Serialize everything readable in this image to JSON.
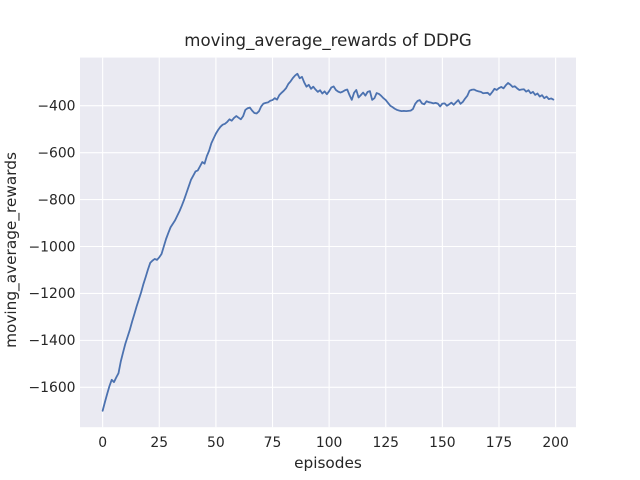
{
  "chart_data": {
    "type": "line",
    "title": "moving_average_rewards of DDPG",
    "xlabel": "episodes",
    "ylabel": "moving_average_rewards",
    "x_ticks": [
      0,
      25,
      50,
      75,
      100,
      125,
      150,
      175,
      200
    ],
    "y_ticks": [
      -400,
      -600,
      -800,
      -1000,
      -1200,
      -1400,
      -1600
    ],
    "xlim": [
      -10,
      209
    ],
    "ylim": [
      -1770,
      -195
    ],
    "grid": true,
    "legend_position": "none",
    "style": {
      "line_color": "#4c72b0",
      "axes_background": "#eaeaf2",
      "grid_color": "#ffffff",
      "text_color": "#262626",
      "figure_background": "#ffffff"
    },
    "series": [
      {
        "name": "moving_average_rewards",
        "x": [
          0,
          1,
          2,
          3,
          4,
          5,
          6,
          7,
          8,
          9,
          10,
          11,
          12,
          13,
          14,
          15,
          16,
          17,
          18,
          19,
          20,
          21,
          22,
          23,
          24,
          25,
          26,
          27,
          28,
          29,
          30,
          31,
          32,
          33,
          34,
          35,
          36,
          37,
          38,
          39,
          40,
          41,
          42,
          43,
          44,
          45,
          46,
          47,
          48,
          49,
          50,
          51,
          52,
          53,
          54,
          55,
          56,
          57,
          58,
          59,
          60,
          61,
          62,
          63,
          64,
          65,
          66,
          67,
          68,
          69,
          70,
          71,
          72,
          73,
          74,
          75,
          76,
          77,
          78,
          79,
          80,
          81,
          82,
          83,
          84,
          85,
          86,
          87,
          88,
          89,
          90,
          91,
          92,
          93,
          94,
          95,
          96,
          97,
          98,
          99,
          100,
          101,
          102,
          103,
          104,
          105,
          106,
          107,
          108,
          109,
          110,
          111,
          112,
          113,
          114,
          115,
          116,
          117,
          118,
          119,
          120,
          121,
          122,
          123,
          124,
          125,
          126,
          127,
          128,
          129,
          130,
          131,
          132,
          133,
          134,
          135,
          136,
          137,
          138,
          139,
          140,
          141,
          142,
          143,
          144,
          145,
          146,
          147,
          148,
          149,
          150,
          151,
          152,
          153,
          154,
          155,
          156,
          157,
          158,
          159,
          160,
          161,
          162,
          163,
          164,
          165,
          166,
          167,
          168,
          169,
          170,
          171,
          172,
          173,
          174,
          175,
          176,
          177,
          178,
          179,
          180,
          181,
          182,
          183,
          184,
          185,
          186,
          187,
          188,
          189,
          190,
          191,
          192,
          193,
          194,
          195,
          196,
          197,
          198,
          199
        ],
        "y": [
          -1700,
          -1663,
          -1628,
          -1595,
          -1568,
          -1578,
          -1558,
          -1540,
          -1490,
          -1452,
          -1415,
          -1385,
          -1355,
          -1320,
          -1288,
          -1255,
          -1225,
          -1195,
          -1160,
          -1130,
          -1098,
          -1070,
          -1060,
          -1053,
          -1057,
          -1046,
          -1032,
          -1000,
          -968,
          -942,
          -918,
          -903,
          -888,
          -868,
          -848,
          -825,
          -800,
          -772,
          -744,
          -716,
          -698,
          -680,
          -676,
          -658,
          -640,
          -647,
          -615,
          -592,
          -560,
          -539,
          -519,
          -503,
          -490,
          -481,
          -477,
          -469,
          -458,
          -464,
          -452,
          -444,
          -451,
          -458,
          -445,
          -418,
          -411,
          -408,
          -421,
          -431,
          -433,
          -424,
          -403,
          -391,
          -388,
          -386,
          -379,
          -376,
          -368,
          -374,
          -355,
          -345,
          -336,
          -325,
          -307,
          -296,
          -282,
          -271,
          -264,
          -283,
          -277,
          -301,
          -319,
          -311,
          -328,
          -319,
          -331,
          -341,
          -334,
          -348,
          -339,
          -351,
          -338,
          -322,
          -318,
          -333,
          -340,
          -344,
          -340,
          -334,
          -331,
          -355,
          -375,
          -345,
          -333,
          -365,
          -355,
          -344,
          -357,
          -341,
          -338,
          -375,
          -368,
          -346,
          -350,
          -358,
          -368,
          -376,
          -388,
          -400,
          -406,
          -413,
          -418,
          -421,
          -423,
          -422,
          -423,
          -422,
          -421,
          -414,
          -392,
          -380,
          -376,
          -390,
          -394,
          -381,
          -385,
          -387,
          -390,
          -388,
          -391,
          -403,
          -391,
          -390,
          -400,
          -394,
          -387,
          -396,
          -386,
          -376,
          -392,
          -384,
          -370,
          -358,
          -336,
          -332,
          -331,
          -336,
          -339,
          -341,
          -347,
          -346,
          -345,
          -354,
          -342,
          -328,
          -333,
          -325,
          -320,
          -326,
          -313,
          -303,
          -310,
          -320,
          -317,
          -326,
          -333,
          -331,
          -330,
          -340,
          -334,
          -347,
          -341,
          -354,
          -348,
          -361,
          -355,
          -368,
          -361,
          -372,
          -369,
          -374
        ]
      }
    ]
  }
}
